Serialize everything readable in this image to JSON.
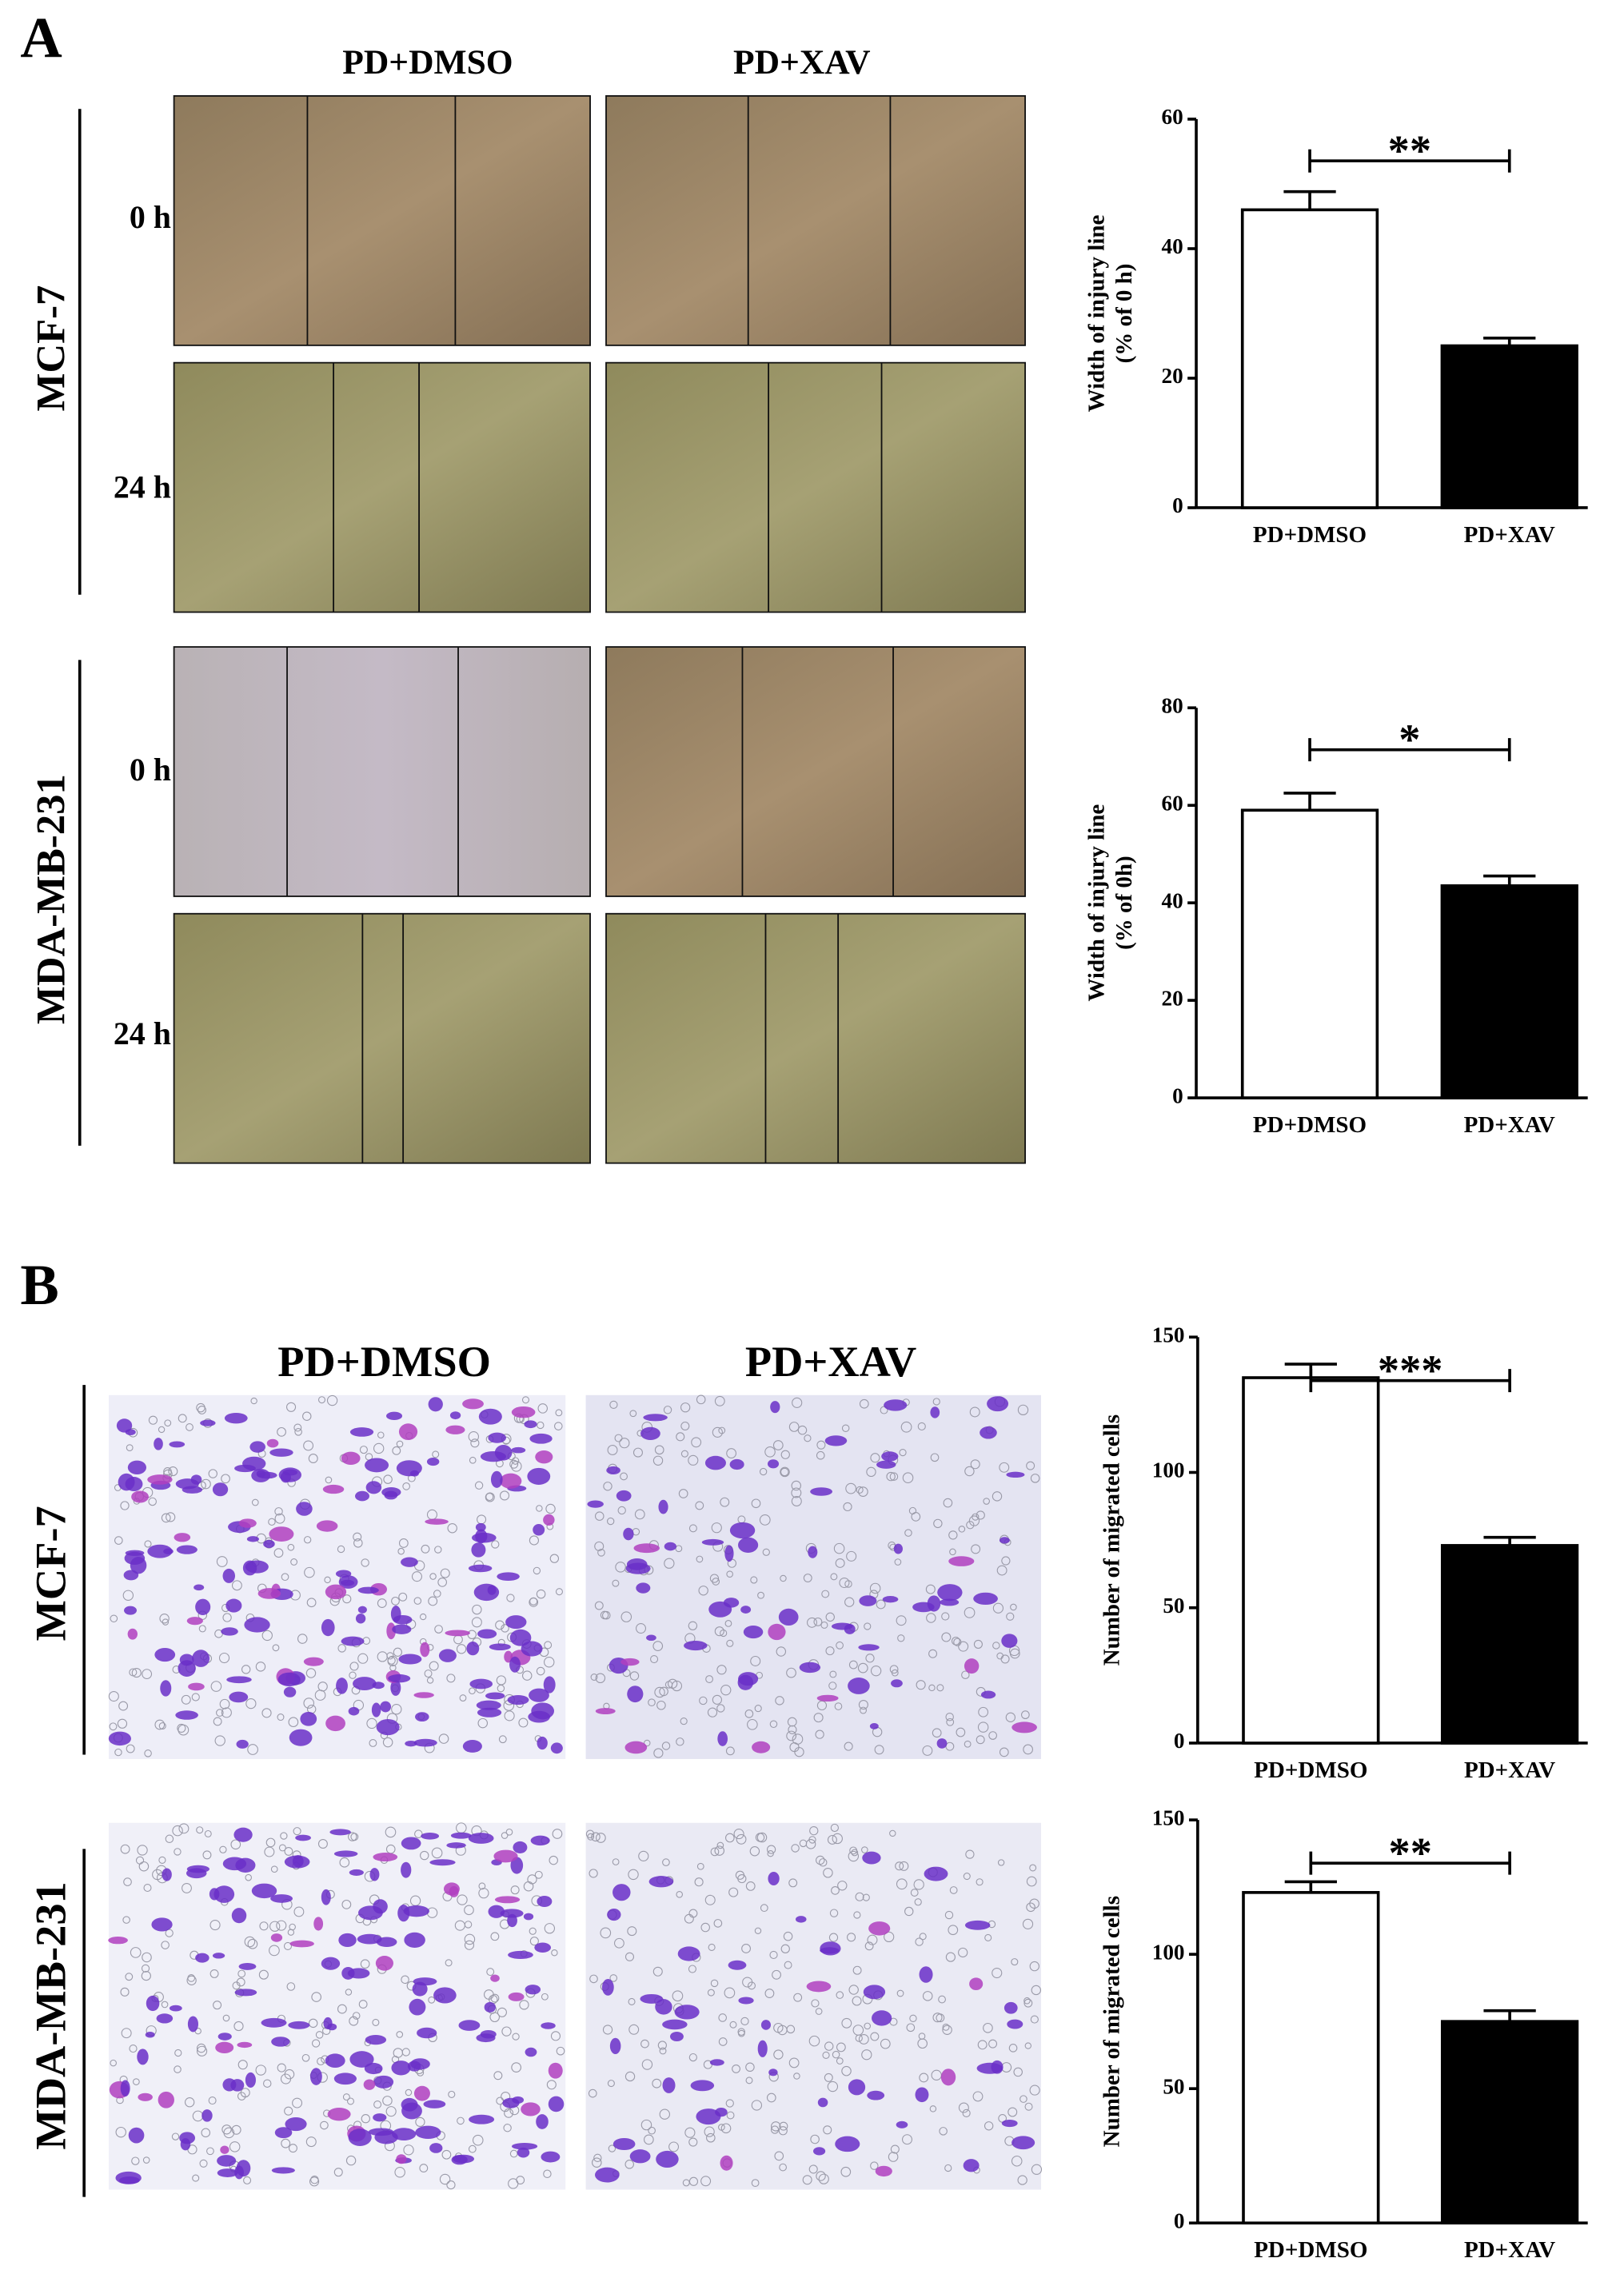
{
  "panels": [
    {
      "label": "A",
      "columns": [
        "PD+DMSO",
        "PD+XAV"
      ],
      "rows": [
        {
          "name": "MCF-7",
          "times": [
            "0 h",
            "24 h"
          ]
        },
        {
          "name": "MDA-MB-231",
          "times": [
            "0 h",
            "24 h"
          ]
        }
      ]
    },
    {
      "label": "B",
      "columns": [
        "PD+DMSO",
        "PD+XAV"
      ],
      "rows": [
        {
          "name": "MCF-7"
        },
        {
          "name": "MDA-MB-231"
        }
      ]
    }
  ],
  "chart_data": [
    {
      "type": "bar",
      "categories": [
        "PD+DMSO",
        "PD+XAV"
      ],
      "values": [
        46,
        25
      ],
      "errors": [
        2.8,
        1.2
      ],
      "colors": [
        "#ffffff",
        "#000000"
      ],
      "ylabel": [
        "Width of injury line",
        "(% of 0 h)"
      ],
      "ylim": [
        0,
        60
      ],
      "yticks": [
        0,
        20,
        40,
        60
      ],
      "significance": "**"
    },
    {
      "type": "bar",
      "categories": [
        "PD+DMSO",
        "PD+XAV"
      ],
      "values": [
        59,
        43.5
      ],
      "errors": [
        3.5,
        2
      ],
      "colors": [
        "#ffffff",
        "#000000"
      ],
      "ylabel": [
        "Width of injury line",
        "(% of 0h)"
      ],
      "ylim": [
        0,
        80
      ],
      "yticks": [
        0,
        20,
        40,
        60,
        80
      ],
      "significance": "*"
    },
    {
      "type": "bar",
      "categories": [
        "PD+DMSO",
        "PD+XAV"
      ],
      "values": [
        135,
        73
      ],
      "errors": [
        5,
        3
      ],
      "colors": [
        "#ffffff",
        "#000000"
      ],
      "ylabel": [
        "Number of migrated cells"
      ],
      "ylim": [
        0,
        150
      ],
      "yticks": [
        0,
        50,
        100,
        150
      ],
      "significance": "***"
    },
    {
      "type": "bar",
      "categories": [
        "PD+DMSO",
        "PD+XAV"
      ],
      "values": [
        123,
        75
      ],
      "errors": [
        4,
        4
      ],
      "colors": [
        "#ffffff",
        "#000000"
      ],
      "ylabel": [
        "Number of migrated cells"
      ],
      "ylim": [
        0,
        150
      ],
      "yticks": [
        0,
        50,
        100,
        150
      ],
      "significance": "**"
    }
  ]
}
